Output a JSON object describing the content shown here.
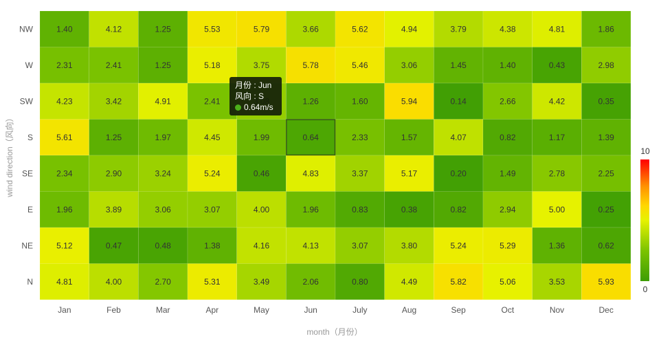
{
  "chart_data": {
    "type": "heatmap",
    "x_categories": [
      "Jan",
      "Feb",
      "Mar",
      "Apr",
      "May",
      "Jun",
      "July",
      "Aug",
      "Sep",
      "Oct",
      "Nov",
      "Dec"
    ],
    "y_categories": [
      "NW",
      "W",
      "SW",
      "S",
      "SE",
      "E",
      "NE",
      "N"
    ],
    "values": [
      [
        1.4,
        4.12,
        1.25,
        5.53,
        5.79,
        3.66,
        5.62,
        4.94,
        3.79,
        4.38,
        4.81,
        1.86
      ],
      [
        2.31,
        2.41,
        1.25,
        5.18,
        3.75,
        5.78,
        5.46,
        3.06,
        1.45,
        1.4,
        0.43,
        2.98
      ],
      [
        4.23,
        3.42,
        4.91,
        2.41,
        3.08,
        1.26,
        1.6,
        5.94,
        0.14,
        2.66,
        4.42,
        0.35
      ],
      [
        5.61,
        1.25,
        1.97,
        4.45,
        1.99,
        0.64,
        2.33,
        1.57,
        4.07,
        0.82,
        1.17,
        1.39
      ],
      [
        2.34,
        2.9,
        3.24,
        5.24,
        0.46,
        4.83,
        3.37,
        5.17,
        0.2,
        1.49,
        2.78,
        2.25
      ],
      [
        1.96,
        3.89,
        3.06,
        3.07,
        4.0,
        1.96,
        0.83,
        0.38,
        0.82,
        2.94,
        5.0,
        0.25
      ],
      [
        5.12,
        0.47,
        0.48,
        1.38,
        4.16,
        4.13,
        3.07,
        3.8,
        5.24,
        5.29,
        1.36,
        0.62
      ],
      [
        4.81,
        4.0,
        2.7,
        5.31,
        3.49,
        2.06,
        0.8,
        4.49,
        5.82,
        5.06,
        3.53,
        5.93
      ]
    ],
    "xlabel": "month（月份）",
    "ylabel": "wind direction（风向）",
    "visual_map": {
      "min": 0,
      "max": 10,
      "min_label": "0",
      "max_label": "10",
      "colors": [
        "#3d9d04",
        "#7cc300",
        "#e6f200",
        "#ffd700",
        "#ff9200",
        "#ff0000"
      ]
    },
    "highlight": {
      "row": 3,
      "col": 5
    }
  },
  "tooltip": {
    "month_line": "月份 : Jun",
    "dir_line": "风向 : S",
    "value_line": "0.64m/s",
    "dot_color": "#4caf1a"
  }
}
